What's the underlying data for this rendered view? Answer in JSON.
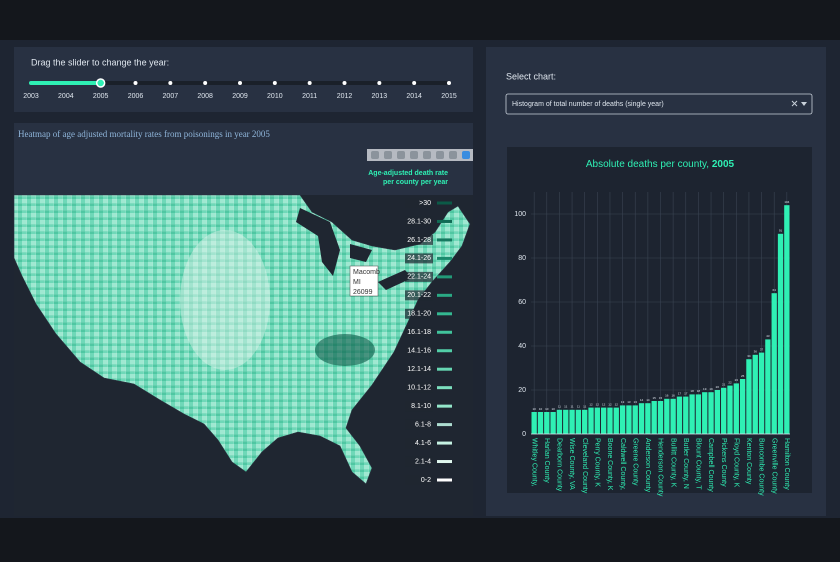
{
  "slider": {
    "label": "Drag the slider to change the year:",
    "years": [
      "2003",
      "2004",
      "2005",
      "2006",
      "2007",
      "2008",
      "2009",
      "2010",
      "2011",
      "2012",
      "2013",
      "2014",
      "2015"
    ],
    "selected": "2005"
  },
  "map": {
    "title": "Heatmap of age adjusted mortality rates from poisonings in year 2005",
    "legend_title": [
      "Age-adjusted death rate",
      "per county per year"
    ],
    "legend_items": [
      {
        "label": ">30",
        "color": "#0b5a47"
      },
      {
        "label": "28.1-30",
        "color": "#106b54"
      },
      {
        "label": "26.1-28",
        "color": "#157a60"
      },
      {
        "label": "24.1-26",
        "color": "#1b8a6c"
      },
      {
        "label": "22.1-24",
        "color": "#229a78"
      },
      {
        "label": "20.1-22",
        "color": "#2aa984"
      },
      {
        "label": "18.1-20",
        "color": "#34b891"
      },
      {
        "label": "16.1-18",
        "color": "#41c49c"
      },
      {
        "label": "14.1-16",
        "color": "#52cea7"
      },
      {
        "label": "12.1-14",
        "color": "#66d7b2"
      },
      {
        "label": "10.1-12",
        "color": "#7cdfbe"
      },
      {
        "label": "8.1-10",
        "color": "#94e6ca"
      },
      {
        "label": "6.1-8",
        "color": "#addcd0"
      },
      {
        "label": "4.1-6",
        "color": "#c6f2e3"
      },
      {
        "label": "2.1-4",
        "color": "#e0f8ef"
      },
      {
        "label": "0-2",
        "color": "#ffffff"
      }
    ],
    "tooltip": [
      "Macomb",
      "MI",
      "26099"
    ]
  },
  "selector": {
    "label": "Select chart:",
    "value": "Histogram of total number of deaths (single year)"
  },
  "chart_data": {
    "type": "bar",
    "title": "Absolute deaths per county,",
    "title_year": "2005",
    "color": "#2ff0b4",
    "categories": [
      "Whitley County,",
      null,
      "Harlan County",
      null,
      "Dearborn County",
      null,
      "Wise County, VA",
      null,
      "Cleveland County",
      null,
      "Perry County, K",
      null,
      "Boone County, K",
      null,
      "Caldwell County,",
      null,
      "Greene County",
      null,
      "Anderson County",
      null,
      "Henderson County",
      null,
      "Bullitt County, K",
      null,
      "Butler County, N",
      null,
      "Blount County, T",
      null,
      "Campbell County",
      null,
      "Pickens County",
      null,
      "Floyd County, K",
      null,
      "Kenton County",
      null,
      "Buncombe County",
      null,
      "Greenville County",
      null,
      "Hamilton County"
    ],
    "values": [
      10,
      10,
      10,
      10,
      11,
      11,
      11,
      11,
      11,
      12,
      12,
      12,
      12,
      12,
      13,
      13,
      13,
      14,
      14,
      15,
      15,
      16,
      16,
      17,
      17,
      18,
      18,
      19,
      19,
      20,
      21,
      22,
      23,
      25,
      34,
      36,
      37,
      43,
      64,
      91,
      104
    ],
    "ylim": [
      0,
      110
    ],
    "yticks": [
      0,
      20,
      40,
      60,
      80,
      100
    ],
    "grid": true
  }
}
